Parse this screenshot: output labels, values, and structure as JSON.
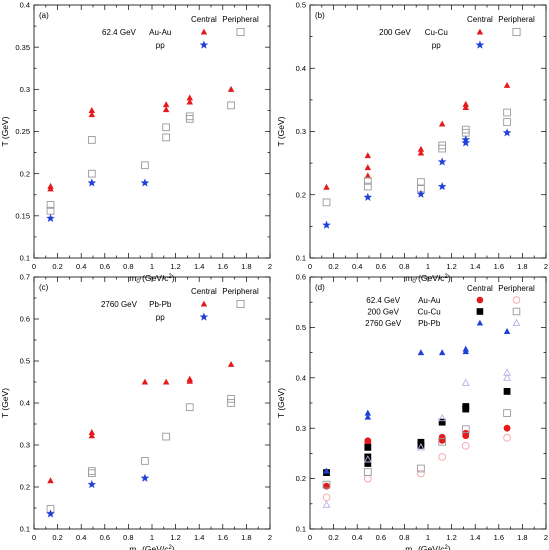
{
  "chart_data": [
    {
      "type": "scatter",
      "panel": "(a)",
      "energy": "62.4 GeV",
      "system": "Au-Au",
      "reference": "pp",
      "legend_headers": [
        "Central",
        "Peripheral"
      ],
      "xlabel": "m0 (GeV/c2)",
      "ylabel": "T (GeV)",
      "xlim": [
        0,
        2
      ],
      "ylim": [
        0.1,
        0.4
      ],
      "xticks": [
        0,
        0.2,
        0.4,
        0.6,
        0.8,
        1,
        1.2,
        1.4,
        1.6,
        1.8,
        2
      ],
      "yticks": [
        0.1,
        0.15,
        0.2,
        0.25,
        0.3,
        0.35,
        0.4
      ],
      "yticklabels": [
        "0.1",
        "0.15",
        "0.2",
        "0.25",
        "0.3",
        "0.35",
        "0.4"
      ],
      "series": [
        {
          "name": "Central",
          "marker": "triangle-filled",
          "color": "#e41a1c",
          "x": [
            0.14,
            0.14,
            0.49,
            0.49,
            1.12,
            1.12,
            1.32,
            1.32,
            1.67
          ],
          "y": [
            0.185,
            0.182,
            0.275,
            0.27,
            0.282,
            0.276,
            0.29,
            0.285,
            0.3
          ]
        },
        {
          "name": "Peripheral",
          "marker": "square-open",
          "color": "#9a9a9a",
          "x": [
            0.14,
            0.14,
            0.49,
            0.49,
            0.94,
            1.12,
            1.12,
            1.32,
            1.32,
            1.67
          ],
          "y": [
            0.163,
            0.156,
            0.24,
            0.2,
            0.21,
            0.255,
            0.243,
            0.268,
            0.265,
            0.281
          ]
        },
        {
          "name": "pp",
          "marker": "star",
          "color": "#1f3fd9",
          "x": [
            0.14,
            0.49,
            0.94
          ],
          "y": [
            0.147,
            0.189,
            0.189
          ]
        }
      ]
    },
    {
      "type": "scatter",
      "panel": "(b)",
      "energy": "200 GeV",
      "system": "Cu-Cu",
      "reference": "pp",
      "legend_headers": [
        "Central",
        "Peripheral"
      ],
      "xlabel": "m0 (GeV/c2)",
      "ylabel": "T (GeV)",
      "xlim": [
        0,
        2
      ],
      "ylim": [
        0.1,
        0.5
      ],
      "xticks": [
        0,
        0.2,
        0.4,
        0.6,
        0.8,
        1,
        1.2,
        1.4,
        1.6,
        1.8,
        2
      ],
      "yticks": [
        0.1,
        0.2,
        0.3,
        0.4,
        0.5
      ],
      "yticklabels": [
        "0.1",
        "0.2",
        "0.3",
        "0.4",
        "0.5"
      ],
      "series": [
        {
          "name": "Central",
          "marker": "triangle-filled",
          "color": "#e41a1c",
          "x": [
            0.14,
            0.49,
            0.49,
            0.49,
            0.94,
            0.94,
            1.12,
            1.32,
            1.32,
            1.67
          ],
          "y": [
            0.212,
            0.262,
            0.243,
            0.23,
            0.272,
            0.266,
            0.312,
            0.343,
            0.338,
            0.373
          ]
        },
        {
          "name": "Peripheral",
          "marker": "square-open",
          "color": "#9a9a9a",
          "x": [
            0.14,
            0.49,
            0.49,
            0.94,
            0.94,
            1.12,
            1.12,
            1.32,
            1.32,
            1.67,
            1.67
          ],
          "y": [
            0.188,
            0.222,
            0.213,
            0.22,
            0.21,
            0.278,
            0.273,
            0.303,
            0.298,
            0.33,
            0.315
          ]
        },
        {
          "name": "pp",
          "marker": "star",
          "color": "#1f3fd9",
          "x": [
            0.14,
            0.49,
            0.94,
            1.12,
            1.12,
            1.32,
            1.32,
            1.67
          ],
          "y": [
            0.152,
            0.196,
            0.201,
            0.252,
            0.213,
            0.287,
            0.282,
            0.298
          ]
        }
      ]
    },
    {
      "type": "scatter",
      "panel": "(c)",
      "energy": "2760 GeV",
      "system": "Pb-Pb",
      "reference": "pp",
      "legend_headers": [
        "Central",
        "Peripheral"
      ],
      "xlabel": "m0 (GeV/c2)",
      "ylabel": "T (GeV)",
      "xlim": [
        0,
        2
      ],
      "ylim": [
        0.1,
        0.7
      ],
      "xticks": [
        0,
        0.2,
        0.4,
        0.6,
        0.8,
        1,
        1.2,
        1.4,
        1.6,
        1.8,
        2
      ],
      "yticks": [
        0.1,
        0.2,
        0.3,
        0.4,
        0.5,
        0.6,
        0.7
      ],
      "yticklabels": [
        "0.1",
        "0.2",
        "0.3",
        "0.4",
        "0.5",
        "0.6",
        "0.7"
      ],
      "series": [
        {
          "name": "Central",
          "marker": "triangle-filled",
          "color": "#e41a1c",
          "x": [
            0.14,
            0.49,
            0.49,
            0.94,
            1.12,
            1.32,
            1.32,
            1.67
          ],
          "y": [
            0.215,
            0.33,
            0.322,
            0.45,
            0.45,
            0.457,
            0.452,
            0.492
          ]
        },
        {
          "name": "Peripheral",
          "marker": "square-open",
          "color": "#9a9a9a",
          "x": [
            0.14,
            0.49,
            0.49,
            0.94,
            1.12,
            1.32,
            1.67,
            1.67
          ],
          "y": [
            0.148,
            0.238,
            0.233,
            0.262,
            0.32,
            0.39,
            0.41,
            0.4
          ]
        },
        {
          "name": "pp",
          "marker": "star",
          "color": "#1f3fd9",
          "x": [
            0.14,
            0.49,
            0.94
          ],
          "y": [
            0.136,
            0.206,
            0.221
          ]
        }
      ]
    },
    {
      "type": "scatter",
      "panel": "(d)",
      "legend_headers": [
        "Central",
        "Peripheral"
      ],
      "legend_rows": [
        {
          "energy": "62.4 GeV",
          "system": "Au-Au",
          "central": "circle-filled-red",
          "peripheral": "circle-open-pink"
        },
        {
          "energy": "200 GeV",
          "system": "Cu-Cu",
          "central": "square-filled-black",
          "peripheral": "square-open-gray"
        },
        {
          "energy": "2760 GeV",
          "system": "Pb-Pb",
          "central": "triangle-filled-blue",
          "peripheral": "triangle-open-lavender"
        }
      ],
      "xlabel": "m0 (GeV/c2)",
      "ylabel": "T (GeV)",
      "xlim": [
        0,
        2
      ],
      "ylim": [
        0.1,
        0.6
      ],
      "xticks": [
        0,
        0.2,
        0.4,
        0.6,
        0.8,
        1,
        1.2,
        1.4,
        1.6,
        1.8,
        2
      ],
      "yticks": [
        0.1,
        0.2,
        0.3,
        0.4,
        0.5,
        0.6
      ],
      "yticklabels": [
        "0.1",
        "0.2",
        "0.3",
        "0.4",
        "0.5",
        "0.6"
      ],
      "series": [
        {
          "name": "62.4 GeV Au-Au Central",
          "marker": "circle-filled",
          "color": "#e41a1c",
          "x": [
            0.14,
            0.49,
            0.49,
            1.12,
            1.12,
            1.32,
            1.32,
            1.67
          ],
          "y": [
            0.185,
            0.275,
            0.27,
            0.282,
            0.276,
            0.29,
            0.285,
            0.3
          ]
        },
        {
          "name": "62.4 GeV Au-Au Peripheral",
          "marker": "circle-open",
          "color": "#f4a3a8",
          "x": [
            0.14,
            0.49,
            0.94,
            1.12,
            1.32,
            1.67
          ],
          "y": [
            0.163,
            0.2,
            0.21,
            0.243,
            0.265,
            0.281
          ]
        },
        {
          "name": "200 GeV Cu-Cu Central",
          "marker": "square-filled",
          "color": "#000000",
          "x": [
            0.14,
            0.49,
            0.49,
            0.49,
            0.94,
            0.94,
            1.12,
            1.32,
            1.32,
            1.67
          ],
          "y": [
            0.212,
            0.262,
            0.243,
            0.23,
            0.272,
            0.266,
            0.312,
            0.343,
            0.338,
            0.373
          ]
        },
        {
          "name": "200 GeV Cu-Cu Peripheral",
          "marker": "square-open",
          "color": "#9a9a9a",
          "x": [
            0.14,
            0.49,
            0.94,
            1.12,
            1.32,
            1.67
          ],
          "y": [
            0.188,
            0.213,
            0.22,
            0.273,
            0.298,
            0.33
          ]
        },
        {
          "name": "2760 GeV Pb-Pb Central",
          "marker": "triangle-filled",
          "color": "#1f3fd9",
          "x": [
            0.14,
            0.49,
            0.49,
            0.94,
            1.12,
            1.32,
            1.32,
            1.67
          ],
          "y": [
            0.215,
            0.33,
            0.322,
            0.45,
            0.45,
            0.457,
            0.452,
            0.492
          ]
        },
        {
          "name": "2760 GeV Pb-Pb Peripheral",
          "marker": "triangle-open",
          "color": "#b7b2e6",
          "x": [
            0.14,
            0.49,
            0.94,
            1.12,
            1.32,
            1.67,
            1.67
          ],
          "y": [
            0.148,
            0.238,
            0.262,
            0.32,
            0.39,
            0.41,
            0.4
          ]
        }
      ]
    }
  ]
}
